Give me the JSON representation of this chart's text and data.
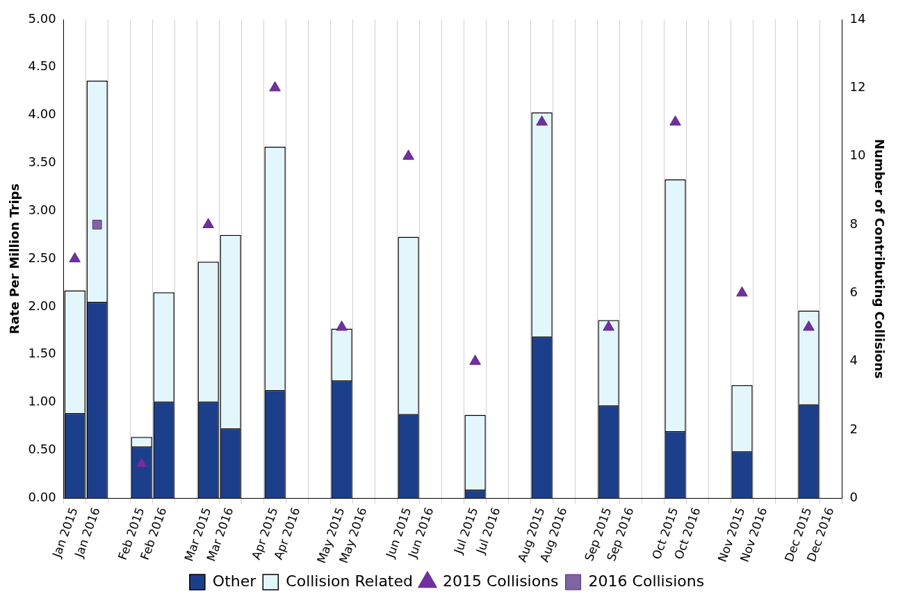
{
  "chart_data": {
    "type": "bar",
    "stacked": true,
    "ylabel": "Rate Per Million Trips",
    "y2label": "Number of Contributing Collisions",
    "categories": [
      "Jan 2015",
      "Jan 2016",
      null,
      "Feb 2015",
      "Feb 2016",
      null,
      "Mar 2015",
      "Mar 2016",
      null,
      "Apr 2015",
      "Apr 2016",
      null,
      "May 2015",
      "May 2016",
      null,
      "Jun 2015",
      "Jun 2016",
      null,
      "Jul 2015",
      "Jul 2016",
      null,
      "Aug 2015",
      "Aug 2016",
      null,
      "Sep 2015",
      "Sep 2016",
      null,
      "Oct 2015",
      "Oct 2016",
      null,
      "Nov 2015",
      "Nov 2016",
      null,
      "Dec 2015",
      "Dec 2016"
    ],
    "series": [
      {
        "name": "Other",
        "color": "#1c3f8c",
        "values": [
          0.89,
          2.05,
          null,
          0.54,
          1.01,
          null,
          1.01,
          0.73,
          null,
          1.13,
          null,
          null,
          1.23,
          null,
          null,
          0.88,
          null,
          null,
          0.09,
          null,
          null,
          1.69,
          null,
          null,
          0.97,
          null,
          null,
          0.7,
          null,
          null,
          0.49,
          null,
          null,
          0.98,
          null
        ]
      },
      {
        "name": "Collision Related",
        "color": "#e3f6fb",
        "values": [
          1.28,
          2.31,
          null,
          0.1,
          1.14,
          null,
          1.46,
          2.02,
          null,
          2.54,
          null,
          null,
          0.54,
          null,
          null,
          1.85,
          null,
          null,
          0.78,
          null,
          null,
          2.34,
          null,
          null,
          0.89,
          null,
          null,
          2.63,
          null,
          null,
          0.69,
          null,
          null,
          0.98,
          null
        ]
      },
      {
        "name": "2015 Collisions",
        "type": "scatter",
        "axis": "y2",
        "marker": "triangle",
        "color": "#7030a0",
        "values": [
          7,
          null,
          null,
          1,
          null,
          null,
          8,
          null,
          null,
          12,
          null,
          null,
          5,
          null,
          null,
          10,
          null,
          null,
          4,
          null,
          null,
          11,
          null,
          null,
          5,
          null,
          null,
          11,
          null,
          null,
          6,
          null,
          null,
          5,
          null
        ]
      },
      {
        "name": "2016 Collisions",
        "type": "scatter",
        "axis": "y2",
        "marker": "square",
        "color": "#8064a2",
        "values": [
          null,
          8,
          null,
          null,
          null,
          null,
          null,
          null,
          null,
          null,
          null,
          null,
          null,
          null,
          null,
          null,
          null,
          null,
          null,
          null,
          null,
          null,
          null,
          null,
          null,
          null,
          null,
          null,
          null,
          null,
          null,
          null,
          null,
          null,
          null
        ]
      }
    ],
    "ylim": [
      0,
      5
    ],
    "yticks": [
      {
        "value": 0,
        "label": "0.00"
      },
      {
        "value": 0.5,
        "label": "0.50"
      },
      {
        "value": 1,
        "label": "1.00"
      },
      {
        "value": 1.5,
        "label": "1.50"
      },
      {
        "value": 2,
        "label": "2.00"
      },
      {
        "value": 2.5,
        "label": "2.50"
      },
      {
        "value": 3,
        "label": "3.00"
      },
      {
        "value": 3.5,
        "label": "3.50"
      },
      {
        "value": 4,
        "label": "4.00"
      },
      {
        "value": 4.5,
        "label": "4.50"
      },
      {
        "value": 5,
        "label": "5.00"
      }
    ],
    "y2lim": [
      0,
      14
    ],
    "y2ticks": [
      0,
      2,
      4,
      6,
      8,
      10,
      12,
      14
    ],
    "grid": "x",
    "legend": "bottom"
  }
}
